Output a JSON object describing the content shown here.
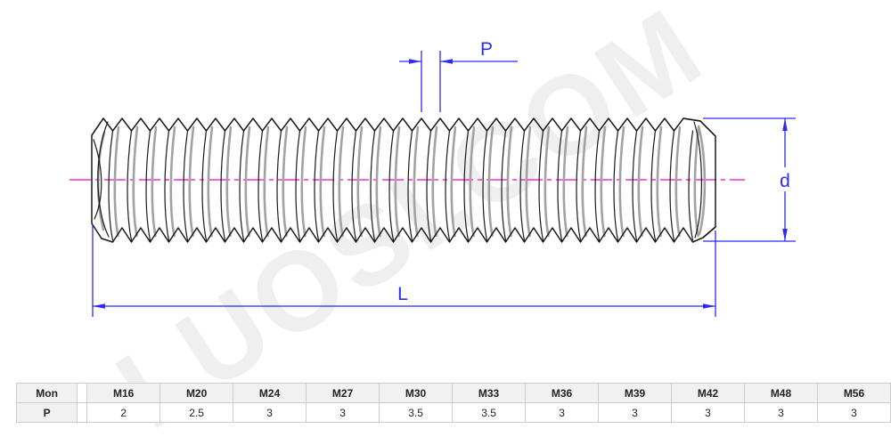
{
  "drawing": {
    "pitch_label": "P",
    "diameter_label": "d",
    "length_label": "L",
    "dimension_color": "#2b2bf2",
    "centerline_color": "#ff2ecc",
    "thread_outline_color": "#1a1a1a",
    "thread_shading_color": "#a2a2a2"
  },
  "watermark_text": "LUOSI.COM",
  "table": {
    "size_row_header": "Mon",
    "pitch_row_header": "P",
    "size_columns": [
      "M16",
      "M20",
      "M24",
      "M27",
      "M30",
      "M33",
      "M36",
      "M39",
      "M42",
      "M48",
      "M56"
    ],
    "pitch_values": [
      "2",
      "2.5",
      "3",
      "3",
      "3.5",
      "3.5",
      "3",
      "3",
      "3",
      "3",
      "3"
    ]
  }
}
